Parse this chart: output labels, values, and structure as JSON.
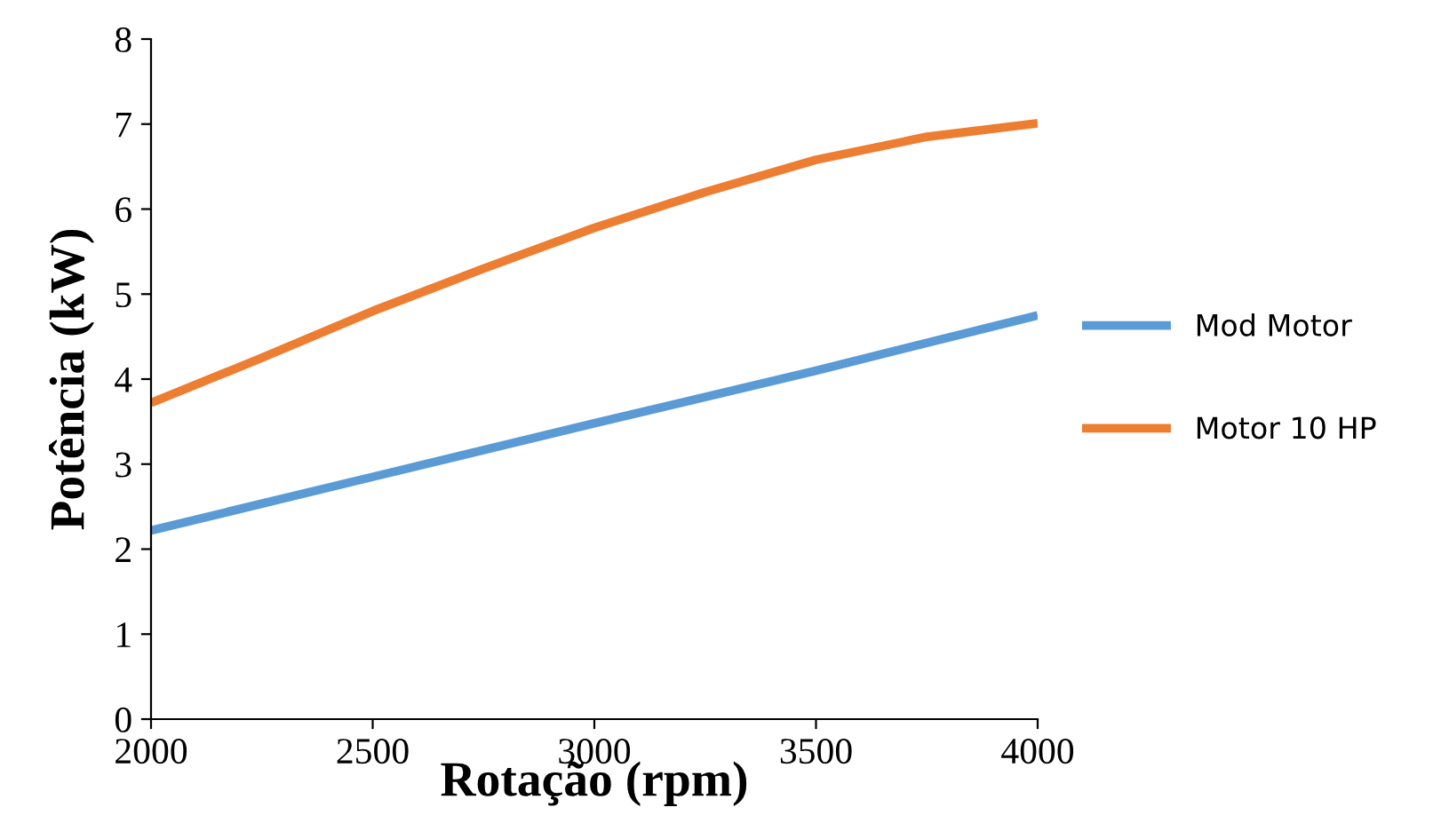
{
  "chart_data": {
    "type": "line",
    "xlabel": "Rotação (rpm)",
    "ylabel": "Potência (kW)",
    "xlim": [
      2000,
      4000
    ],
    "xticks": [
      2000,
      2500,
      3000,
      3500,
      4000
    ],
    "ylim": [
      0,
      8
    ],
    "yticks": [
      0,
      1,
      2,
      3,
      4,
      5,
      6,
      7,
      8
    ],
    "grid": false,
    "legend": "right",
    "marker": "none",
    "line_style": "solid",
    "series": [
      {
        "name": "Mod Motor",
        "color": "#5b9bd5",
        "x": [
          2000,
          2500,
          3000,
          3500,
          4000
        ],
        "values": [
          2.22,
          2.85,
          3.48,
          4.1,
          4.75
        ]
      },
      {
        "name": "Motor 10 HP",
        "color": "#ed7d31",
        "x": [
          2000,
          2250,
          2500,
          2750,
          3000,
          3250,
          3500,
          3750,
          4000
        ],
        "values": [
          3.72,
          4.25,
          4.8,
          5.3,
          5.78,
          6.2,
          6.58,
          6.85,
          7.01
        ]
      }
    ]
  }
}
